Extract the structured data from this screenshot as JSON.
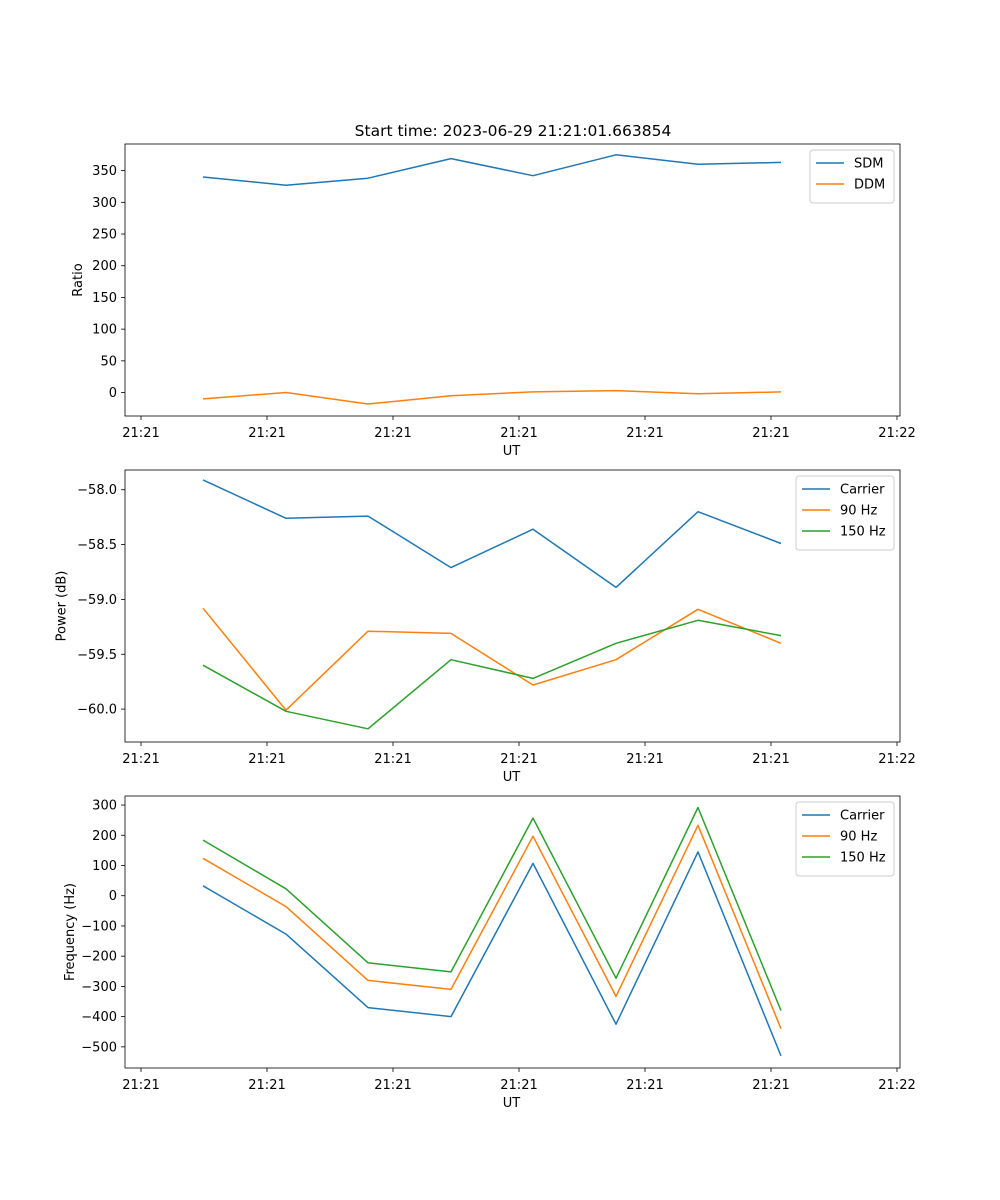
{
  "chart_data": [
    {
      "type": "line",
      "title": "Start time: 2023-06-29 21:21:01.663854",
      "xlabel": "UT",
      "ylabel": "Ratio",
      "x_tick_labels": [
        "21:21",
        "21:21",
        "21:21",
        "21:21",
        "21:21",
        "21:21",
        "21:22"
      ],
      "y_ticks": [
        0,
        50,
        100,
        150,
        200,
        250,
        300,
        350
      ],
      "ylim": [
        -37,
        392
      ],
      "legend": "top-right",
      "grid": false,
      "series": [
        {
          "name": "SDM",
          "color": "#1f77b4",
          "values": [
            340,
            327,
            338,
            369,
            342,
            375,
            360,
            363
          ]
        },
        {
          "name": "DDM",
          "color": "#ff7f0e",
          "values": [
            -10,
            0,
            -18,
            -5,
            1,
            3,
            -2,
            1
          ]
        }
      ]
    },
    {
      "type": "line",
      "title": "",
      "xlabel": "UT",
      "ylabel": "Power (dB)",
      "x_tick_labels": [
        "21:21",
        "21:21",
        "21:21",
        "21:21",
        "21:21",
        "21:21",
        "21:22"
      ],
      "y_ticks": [
        -60.0,
        -59.5,
        -59.0,
        -58.5,
        -58.0
      ],
      "y_tick_labels": [
        "−60.0",
        "−59.5",
        "−59.0",
        "−58.5",
        "−58.0"
      ],
      "ylim": [
        -60.3,
        -57.82
      ],
      "legend": "top-right",
      "grid": false,
      "series": [
        {
          "name": "Carrier",
          "color": "#1f77b4",
          "values": [
            -57.91,
            -58.26,
            -58.24,
            -58.71,
            -58.36,
            -58.89,
            -58.2,
            -58.49
          ]
        },
        {
          "name": "90 Hz",
          "color": "#ff7f0e",
          "values": [
            -59.08,
            -60.01,
            -59.29,
            -59.31,
            -59.78,
            -59.55,
            -59.09,
            -59.4
          ]
        },
        {
          "name": "150 Hz",
          "color": "#2ca02c",
          "values": [
            -59.6,
            -60.02,
            -60.18,
            -59.55,
            -59.72,
            -59.4,
            -59.19,
            -59.33
          ]
        }
      ]
    },
    {
      "type": "line",
      "title": "",
      "xlabel": "UT",
      "ylabel": "Frequency (Hz)",
      "x_tick_labels": [
        "21:21",
        "21:21",
        "21:21",
        "21:21",
        "21:21",
        "21:21",
        "21:22"
      ],
      "y_ticks": [
        -500,
        -400,
        -300,
        -200,
        -100,
        0,
        100,
        200,
        300
      ],
      "y_tick_labels": [
        "−500",
        "−400",
        "−300",
        "−200",
        "−100",
        "0",
        "100",
        "200",
        "300"
      ],
      "ylim": [
        -570,
        330
      ],
      "legend": "top-right",
      "grid": false,
      "series": [
        {
          "name": "Carrier",
          "color": "#1f77b4",
          "values": [
            33,
            -127,
            -370,
            -400,
            107,
            -425,
            145,
            -530
          ]
        },
        {
          "name": "90 Hz",
          "color": "#ff7f0e",
          "values": [
            124,
            -36,
            -280,
            -310,
            197,
            -333,
            233,
            -440
          ]
        },
        {
          "name": "150 Hz",
          "color": "#2ca02c",
          "values": [
            184,
            23,
            -222,
            -252,
            257,
            -273,
            292,
            -380
          ]
        }
      ]
    }
  ]
}
